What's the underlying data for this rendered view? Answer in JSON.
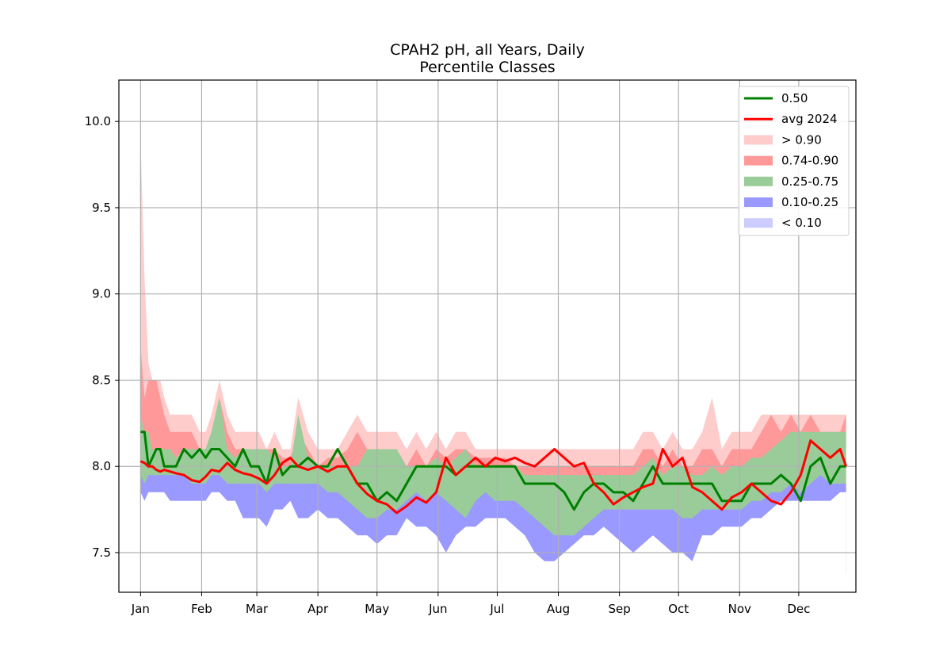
{
  "chart_data": {
    "type": "area",
    "title": "CPAH2 pH, all Years, Daily",
    "subtitle": "Percentile Classes",
    "xlabel": "",
    "ylabel": "",
    "x_tick_labels": [
      "Jan",
      "Feb",
      "Mar",
      "Apr",
      "May",
      "Jun",
      "Jul",
      "Aug",
      "Sep",
      "Oct",
      "Nov",
      "Dec"
    ],
    "y_ticks": [
      7.5,
      8.0,
      8.5,
      9.0,
      9.5,
      10.0
    ],
    "y_tick_labels": [
      "7.5",
      "8.0",
      "8.5",
      "9.0",
      "9.5",
      "10.0"
    ],
    "ylim": [
      7.27,
      10.24
    ],
    "xlim_day_of_year": [
      -11,
      363
    ],
    "grid": true,
    "legend_position": "upper right",
    "colors": {
      "median": "#008000",
      "avg": "#ff0000",
      "gt90": "#ffcccc",
      "p74_90": "#ff9999",
      "p25_75": "#99cc99",
      "p10_25": "#9999ff",
      "lt10": "#ccccff"
    },
    "legend": [
      {
        "label": "0.50",
        "kind": "line",
        "color": "#008000"
      },
      {
        "label": "avg 2024",
        "kind": "line",
        "color": "#ff0000"
      },
      {
        "label": "> 0.90",
        "kind": "patch",
        "color": "#ffcccc"
      },
      {
        "label": "0.74-0.90",
        "kind": "patch",
        "color": "#ff9999"
      },
      {
        "label": "0.25-0.75",
        "kind": "patch",
        "color": "#99cc99"
      },
      {
        "label": "0.10-0.25",
        "kind": "patch",
        "color": "#9999ff"
      },
      {
        "label": "< 0.10",
        "kind": "patch",
        "color": "#ccccff"
      }
    ],
    "x_day_of_year": [
      0,
      2,
      4,
      6,
      8,
      10,
      12,
      15,
      18,
      22,
      26,
      30,
      33,
      36,
      40,
      44,
      48,
      52,
      56,
      60,
      64,
      68,
      72,
      76,
      80,
      85,
      90,
      95,
      100,
      105,
      110,
      115,
      120,
      125,
      130,
      135,
      140,
      145,
      150,
      155,
      160,
      165,
      170,
      175,
      180,
      185,
      190,
      195,
      200,
      205,
      210,
      215,
      220,
      225,
      230,
      235,
      240,
      245,
      250,
      255,
      260,
      265,
      270,
      275,
      280,
      285,
      290,
      295,
      300,
      305,
      310,
      315,
      320,
      325,
      330,
      335,
      340,
      345,
      350,
      355,
      358
    ],
    "series": [
      {
        "name": "0.50",
        "values": [
          8.2,
          8.2,
          8.0,
          8.05,
          8.1,
          8.1,
          8.0,
          8.0,
          8.0,
          8.1,
          8.05,
          8.1,
          8.05,
          8.1,
          8.1,
          8.05,
          8.0,
          8.1,
          8.0,
          8.0,
          7.9,
          8.1,
          7.95,
          8.0,
          8.0,
          8.05,
          8.0,
          8.0,
          8.1,
          8.0,
          7.9,
          7.9,
          7.8,
          7.85,
          7.8,
          7.9,
          8.0,
          8.0,
          8.0,
          8.0,
          7.95,
          8.0,
          8.0,
          8.0,
          8.0,
          8.0,
          8.0,
          7.9,
          7.9,
          7.9,
          7.9,
          7.85,
          7.75,
          7.85,
          7.9,
          7.9,
          7.85,
          7.85,
          7.8,
          7.9,
          8.0,
          7.9,
          7.9,
          7.9,
          7.9,
          7.9,
          7.9,
          7.8,
          7.8,
          7.8,
          7.9,
          7.9,
          7.9,
          7.95,
          7.9,
          7.8,
          8.0,
          8.05,
          7.9,
          8.0,
          8.0
        ]
      },
      {
        "name": "avg 2024",
        "values": [
          8.03,
          8.02,
          8.0,
          8.0,
          7.98,
          7.97,
          7.98,
          7.97,
          7.96,
          7.95,
          7.92,
          7.91,
          7.94,
          7.98,
          7.97,
          8.02,
          7.98,
          7.96,
          7.95,
          7.93,
          7.9,
          7.95,
          8.02,
          8.05,
          8.0,
          7.98,
          8.0,
          7.97,
          8.0,
          8.0,
          7.9,
          7.84,
          7.8,
          7.78,
          7.73,
          7.77,
          7.82,
          7.79,
          7.85,
          8.05,
          7.95,
          8.0,
          8.05,
          8.0,
          8.05,
          8.03,
          8.05,
          8.02,
          8.0,
          8.05,
          8.1,
          8.05,
          8.0,
          8.02,
          7.9,
          7.85,
          7.78,
          7.82,
          7.85,
          7.88,
          7.9,
          8.1,
          8.0,
          8.05,
          7.88,
          7.85,
          7.8,
          7.75,
          7.82,
          7.85,
          7.9,
          7.85,
          7.8,
          7.78,
          7.85,
          7.95,
          8.15,
          8.1,
          8.05,
          8.1,
          8.0
        ]
      },
      {
        "name": "> 0.90",
        "values": [
          9.9,
          9.1,
          8.6,
          8.5,
          8.5,
          8.5,
          8.4,
          8.3,
          8.3,
          8.3,
          8.3,
          8.2,
          8.2,
          8.3,
          8.5,
          8.3,
          8.2,
          8.2,
          8.2,
          8.2,
          8.1,
          8.2,
          8.1,
          8.1,
          8.4,
          8.2,
          8.1,
          8.1,
          8.1,
          8.2,
          8.3,
          8.2,
          8.2,
          8.2,
          8.2,
          8.1,
          8.2,
          8.1,
          8.2,
          8.1,
          8.2,
          8.2,
          8.1,
          8.1,
          8.1,
          8.1,
          8.1,
          8.1,
          8.1,
          8.1,
          8.1,
          8.1,
          8.1,
          8.1,
          8.1,
          8.1,
          8.1,
          8.1,
          8.1,
          8.2,
          8.2,
          8.1,
          8.2,
          8.1,
          8.1,
          8.2,
          8.4,
          8.1,
          8.2,
          8.2,
          8.2,
          8.3,
          8.3,
          8.3,
          8.3,
          8.3,
          8.3,
          8.3,
          8.3,
          8.3,
          8.3
        ]
      },
      {
        "name": "0.74-0.90",
        "values": [
          8.7,
          8.4,
          8.5,
          8.5,
          8.5,
          8.4,
          8.3,
          8.2,
          8.2,
          8.2,
          8.2,
          8.1,
          8.1,
          8.2,
          8.4,
          8.2,
          8.1,
          8.1,
          8.1,
          8.1,
          8.1,
          8.1,
          8.05,
          8.05,
          8.2,
          8.1,
          8.0,
          8.05,
          8.05,
          8.1,
          8.2,
          8.1,
          8.1,
          8.1,
          8.1,
          8.0,
          8.1,
          8.0,
          8.1,
          8.05,
          8.1,
          8.1,
          8.05,
          8.05,
          8.05,
          8.05,
          8.0,
          8.0,
          8.0,
          8.0,
          8.0,
          8.0,
          8.0,
          8.0,
          8.0,
          8.0,
          8.0,
          8.0,
          8.0,
          8.1,
          8.1,
          8.0,
          8.1,
          8.0,
          8.0,
          8.1,
          8.1,
          8.0,
          8.1,
          8.1,
          8.1,
          8.2,
          8.3,
          8.2,
          8.3,
          8.2,
          8.3,
          8.2,
          8.2,
          8.2,
          8.3
        ]
      },
      {
        "name": "0.25-0.75",
        "values": [
          8.3,
          8.2,
          8.2,
          8.1,
          8.1,
          8.1,
          8.1,
          8.1,
          8.05,
          8.1,
          8.1,
          8.1,
          8.1,
          8.2,
          8.4,
          8.1,
          8.05,
          8.1,
          8.1,
          8.1,
          8.1,
          8.05,
          8.0,
          8.0,
          8.3,
          8.05,
          8.0,
          8.0,
          8.0,
          8.0,
          8.0,
          8.1,
          8.1,
          8.1,
          8.1,
          8.0,
          8.0,
          8.0,
          8.05,
          8.0,
          8.05,
          8.1,
          8.0,
          8.0,
          8.0,
          8.0,
          8.0,
          7.95,
          7.95,
          7.95,
          7.95,
          7.95,
          7.95,
          7.95,
          7.95,
          7.95,
          7.95,
          7.95,
          7.95,
          8.0,
          8.05,
          7.95,
          8.0,
          8.0,
          7.95,
          7.95,
          8.0,
          7.95,
          8.0,
          8.0,
          8.05,
          8.05,
          8.1,
          8.15,
          8.2,
          8.2,
          8.2,
          8.2,
          8.2,
          8.2,
          8.2
        ]
      },
      {
        "name": "0.10-0.25",
        "values": [
          7.95,
          7.9,
          7.95,
          7.95,
          7.95,
          7.95,
          7.95,
          7.95,
          7.95,
          7.95,
          7.9,
          7.9,
          7.9,
          7.95,
          7.95,
          7.9,
          7.9,
          7.9,
          7.9,
          7.9,
          7.85,
          7.9,
          7.9,
          7.9,
          7.9,
          7.9,
          7.9,
          7.85,
          7.85,
          7.8,
          7.75,
          7.7,
          7.7,
          7.75,
          7.75,
          7.8,
          7.85,
          7.8,
          7.85,
          7.8,
          7.75,
          7.7,
          7.8,
          7.85,
          7.8,
          7.8,
          7.8,
          7.75,
          7.7,
          7.65,
          7.6,
          7.6,
          7.6,
          7.65,
          7.7,
          7.75,
          7.75,
          7.75,
          7.75,
          7.75,
          7.75,
          7.75,
          7.75,
          7.7,
          7.7,
          7.75,
          7.75,
          7.75,
          7.75,
          7.75,
          7.8,
          7.8,
          7.85,
          7.85,
          7.9,
          7.85,
          7.9,
          7.95,
          7.9,
          7.9,
          7.9
        ]
      },
      {
        "name": "< 0.10",
        "values": [
          7.85,
          7.8,
          7.85,
          7.85,
          7.85,
          7.85,
          7.85,
          7.8,
          7.8,
          7.8,
          7.8,
          7.8,
          7.8,
          7.85,
          7.85,
          7.8,
          7.8,
          7.7,
          7.7,
          7.7,
          7.65,
          7.75,
          7.75,
          7.8,
          7.7,
          7.7,
          7.75,
          7.7,
          7.7,
          7.65,
          7.6,
          7.6,
          7.55,
          7.6,
          7.6,
          7.7,
          7.65,
          7.65,
          7.6,
          7.5,
          7.6,
          7.65,
          7.65,
          7.7,
          7.7,
          7.7,
          7.65,
          7.6,
          7.5,
          7.45,
          7.45,
          7.5,
          7.55,
          7.6,
          7.6,
          7.65,
          7.6,
          7.55,
          7.5,
          7.55,
          7.6,
          7.55,
          7.5,
          7.5,
          7.45,
          7.6,
          7.6,
          7.65,
          7.65,
          7.65,
          7.7,
          7.7,
          7.75,
          7.8,
          7.8,
          7.8,
          7.8,
          7.8,
          7.8,
          7.85,
          7.85
        ]
      }
    ]
  }
}
